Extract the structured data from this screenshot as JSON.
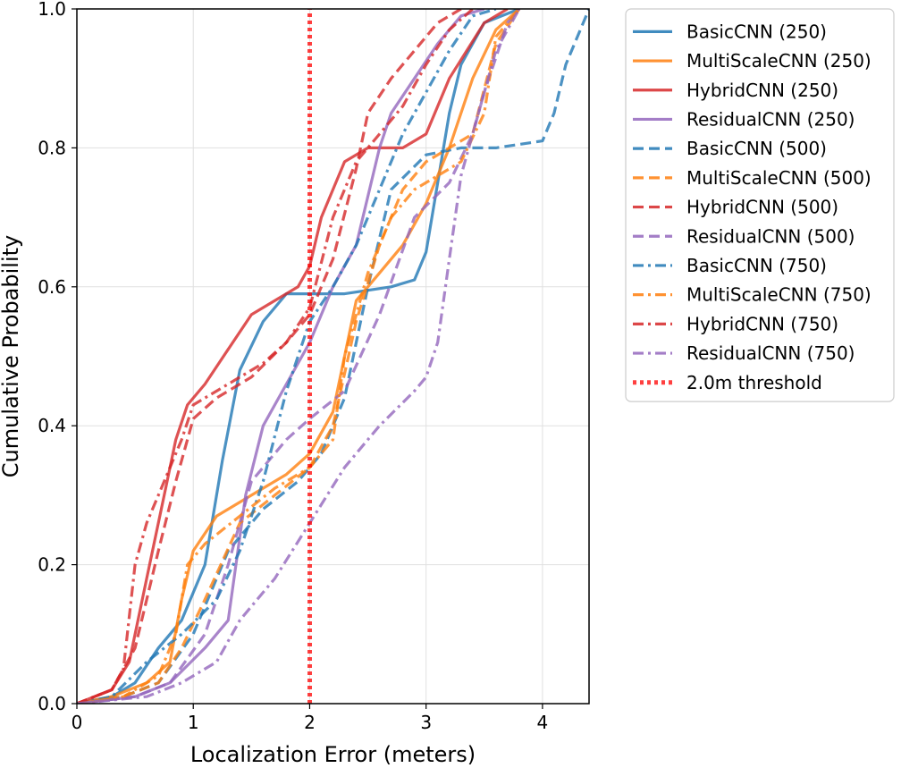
{
  "chart_data": {
    "type": "line",
    "title": "",
    "xlabel": "Localization Error (meters)",
    "ylabel": "Cumulative Probability",
    "xlim": [
      0,
      4.4
    ],
    "ylim": [
      0,
      1.0
    ],
    "xticks": [
      0,
      1,
      2,
      3,
      4
    ],
    "yticks": [
      0.0,
      0.2,
      0.4,
      0.6,
      0.8,
      1.0
    ],
    "xtick_labels": [
      "0",
      "1",
      "2",
      "3",
      "4"
    ],
    "ytick_labels": [
      "0.0",
      "0.2",
      "0.4",
      "0.6",
      "0.8",
      "1.0"
    ],
    "grid": true,
    "legend_position": "outside-right-top",
    "colors": {
      "basic": "#1f77b4",
      "multiscale": "#ff7f0e",
      "hybrid": "#d62728",
      "residual": "#9467bd",
      "threshold": "#ff0000"
    },
    "series": [
      {
        "name": "BasicCNN (250)",
        "color": "basic",
        "style": "solid",
        "x": [
          0,
          0.3,
          0.5,
          0.7,
          0.9,
          1.1,
          1.25,
          1.4,
          1.6,
          1.8,
          2.0,
          2.3,
          2.7,
          2.9,
          3.0,
          3.1,
          3.2,
          3.3,
          3.5,
          3.8
        ],
        "y": [
          0,
          0.01,
          0.03,
          0.08,
          0.12,
          0.2,
          0.35,
          0.48,
          0.55,
          0.59,
          0.59,
          0.59,
          0.6,
          0.61,
          0.65,
          0.75,
          0.85,
          0.92,
          0.98,
          1.0
        ]
      },
      {
        "name": "MultiScaleCNN (250)",
        "color": "multiscale",
        "style": "solid",
        "x": [
          0,
          0.3,
          0.6,
          0.8,
          0.9,
          1.0,
          1.2,
          1.5,
          1.8,
          2.0,
          2.2,
          2.3,
          2.4,
          2.6,
          2.8,
          3.0,
          3.2,
          3.4,
          3.6,
          3.8
        ],
        "y": [
          0,
          0.01,
          0.03,
          0.06,
          0.15,
          0.22,
          0.27,
          0.3,
          0.33,
          0.36,
          0.42,
          0.5,
          0.58,
          0.62,
          0.66,
          0.72,
          0.8,
          0.9,
          0.97,
          1.0
        ]
      },
      {
        "name": "HybridCNN (250)",
        "color": "hybrid",
        "style": "solid",
        "x": [
          0,
          0.3,
          0.45,
          0.6,
          0.75,
          0.85,
          0.95,
          1.1,
          1.3,
          1.5,
          1.7,
          1.9,
          2.0,
          2.1,
          2.3,
          2.5,
          2.8,
          3.0,
          3.2,
          3.5,
          3.7
        ],
        "y": [
          0,
          0.02,
          0.06,
          0.18,
          0.3,
          0.38,
          0.43,
          0.46,
          0.51,
          0.56,
          0.58,
          0.6,
          0.63,
          0.7,
          0.78,
          0.8,
          0.8,
          0.82,
          0.9,
          0.98,
          1.0
        ]
      },
      {
        "name": "ResidualCNN (250)",
        "color": "residual",
        "style": "solid",
        "x": [
          0,
          0.5,
          0.8,
          1.1,
          1.3,
          1.45,
          1.6,
          1.8,
          2.0,
          2.2,
          2.4,
          2.6,
          2.7,
          2.9,
          3.1,
          3.3,
          3.5
        ],
        "y": [
          0,
          0.01,
          0.03,
          0.08,
          0.12,
          0.3,
          0.4,
          0.46,
          0.52,
          0.6,
          0.66,
          0.8,
          0.85,
          0.9,
          0.95,
          0.99,
          1.0
        ]
      },
      {
        "name": "BasicCNN (500)",
        "color": "basic",
        "style": "dashed",
        "x": [
          0,
          0.4,
          0.7,
          1.0,
          1.3,
          1.6,
          1.9,
          2.1,
          2.3,
          2.5,
          2.7,
          3.0,
          3.3,
          3.6,
          4.0,
          4.1,
          4.2,
          4.4
        ],
        "y": [
          0,
          0.01,
          0.03,
          0.1,
          0.22,
          0.28,
          0.32,
          0.36,
          0.44,
          0.6,
          0.74,
          0.79,
          0.8,
          0.8,
          0.81,
          0.85,
          0.92,
          1.0
        ]
      },
      {
        "name": "MultiScaleCNN (500)",
        "color": "multiscale",
        "style": "dashed",
        "x": [
          0,
          0.4,
          0.7,
          0.9,
          1.1,
          1.4,
          1.7,
          2.0,
          2.2,
          2.4,
          2.6,
          2.8,
          3.0,
          3.2,
          3.4,
          3.6,
          3.8
        ],
        "y": [
          0,
          0.01,
          0.03,
          0.08,
          0.15,
          0.26,
          0.3,
          0.34,
          0.4,
          0.55,
          0.66,
          0.74,
          0.78,
          0.8,
          0.82,
          0.95,
          1.0
        ]
      },
      {
        "name": "HybridCNN (500)",
        "color": "hybrid",
        "style": "dashed",
        "x": [
          0,
          0.3,
          0.5,
          0.7,
          0.85,
          1.0,
          1.2,
          1.5,
          1.8,
          2.0,
          2.2,
          2.4,
          2.5,
          2.7,
          2.9,
          3.1,
          3.3
        ],
        "y": [
          0,
          0.02,
          0.08,
          0.22,
          0.32,
          0.41,
          0.44,
          0.47,
          0.52,
          0.56,
          0.64,
          0.77,
          0.85,
          0.9,
          0.94,
          0.98,
          1.0
        ]
      },
      {
        "name": "ResidualCNN (500)",
        "color": "residual",
        "style": "dashed",
        "x": [
          0,
          0.5,
          0.8,
          1.1,
          1.3,
          1.5,
          1.8,
          2.0,
          2.3,
          2.6,
          2.9,
          3.2,
          3.4,
          3.5,
          3.6,
          3.7,
          3.8
        ],
        "y": [
          0,
          0.01,
          0.03,
          0.1,
          0.2,
          0.32,
          0.38,
          0.41,
          0.45,
          0.56,
          0.7,
          0.75,
          0.82,
          0.88,
          0.93,
          0.98,
          1.0
        ]
      },
      {
        "name": "BasicCNN (750)",
        "color": "basic",
        "style": "dashdot",
        "x": [
          0,
          0.3,
          0.6,
          0.9,
          1.2,
          1.4,
          1.6,
          1.8,
          2.0,
          2.2,
          2.4,
          2.6,
          2.8,
          3.0,
          3.2,
          3.4,
          3.6
        ],
        "y": [
          0,
          0.01,
          0.06,
          0.1,
          0.15,
          0.22,
          0.32,
          0.45,
          0.55,
          0.6,
          0.66,
          0.74,
          0.82,
          0.88,
          0.94,
          0.99,
          1.0
        ]
      },
      {
        "name": "MultiScaleCNN (750)",
        "color": "multiscale",
        "style": "dashdot",
        "x": [
          0,
          0.4,
          0.7,
          0.85,
          0.95,
          1.1,
          1.4,
          1.7,
          2.0,
          2.2,
          2.3,
          2.5,
          2.7,
          2.9,
          3.1,
          3.3,
          3.5,
          3.6,
          3.8
        ],
        "y": [
          0,
          0.01,
          0.04,
          0.1,
          0.2,
          0.23,
          0.27,
          0.31,
          0.34,
          0.38,
          0.5,
          0.62,
          0.7,
          0.74,
          0.76,
          0.78,
          0.85,
          0.96,
          1.0
        ]
      },
      {
        "name": "HybridCNN (750)",
        "color": "hybrid",
        "style": "dashdot",
        "x": [
          0,
          0.3,
          0.4,
          0.5,
          0.6,
          0.75,
          0.9,
          1.0,
          1.3,
          1.6,
          1.8,
          2.0,
          2.2,
          2.4,
          2.6,
          2.8,
          3.0,
          3.2,
          3.4
        ],
        "y": [
          0,
          0.02,
          0.05,
          0.2,
          0.26,
          0.32,
          0.38,
          0.43,
          0.46,
          0.49,
          0.52,
          0.57,
          0.7,
          0.78,
          0.82,
          0.86,
          0.92,
          0.97,
          1.0
        ]
      },
      {
        "name": "ResidualCNN (750)",
        "color": "residual",
        "style": "dashdot",
        "x": [
          0,
          0.6,
          0.9,
          1.2,
          1.4,
          1.5,
          1.7,
          2.0,
          2.3,
          2.6,
          2.9,
          3.0,
          3.1,
          3.2,
          3.3,
          3.4,
          3.5,
          3.6,
          3.8
        ],
        "y": [
          0,
          0.01,
          0.03,
          0.06,
          0.12,
          0.14,
          0.18,
          0.26,
          0.34,
          0.4,
          0.45,
          0.47,
          0.52,
          0.64,
          0.76,
          0.82,
          0.88,
          0.94,
          1.0
        ]
      },
      {
        "name": "2.0m threshold",
        "color": "threshold",
        "style": "dotted",
        "x": [
          2.0,
          2.0
        ],
        "y": [
          0,
          1.0
        ]
      }
    ]
  }
}
